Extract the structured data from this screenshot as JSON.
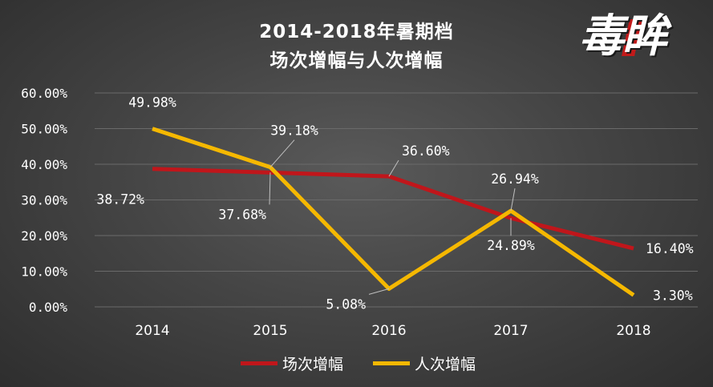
{
  "header": {
    "title_line1": "2014-2018年暑期档",
    "title_line2": "场次增幅与人次增幅",
    "logo_text": "毒眸"
  },
  "colors": {
    "series_a": "#c0161b",
    "series_b": "#f5b800",
    "grid": "#6a6a6a",
    "text": "#ffffff"
  },
  "chart_data": {
    "type": "line",
    "title": "2014-2018年暑期档 场次增幅与人次增幅",
    "x": [
      "2014",
      "2015",
      "2016",
      "2017",
      "2018"
    ],
    "ylim": [
      0,
      60
    ],
    "yticks": [
      0,
      10,
      20,
      30,
      40,
      50,
      60
    ],
    "ytick_labels": [
      "0.00%",
      "10.00%",
      "20.00%",
      "30.00%",
      "40.00%",
      "50.00%",
      "60.00%"
    ],
    "grid": true,
    "legend_position": "bottom",
    "series": [
      {
        "name": "场次增幅",
        "values": [
          38.72,
          37.68,
          36.6,
          24.89,
          16.4
        ],
        "labels": [
          "38.72%",
          "37.68%",
          "36.60%",
          "24.89%",
          "16.40%"
        ]
      },
      {
        "name": "人次增幅",
        "values": [
          49.98,
          39.18,
          5.08,
          26.94,
          3.3
        ],
        "labels": [
          "49.98%",
          "39.18%",
          "5.08%",
          "26.94%",
          "3.30%"
        ]
      }
    ]
  }
}
